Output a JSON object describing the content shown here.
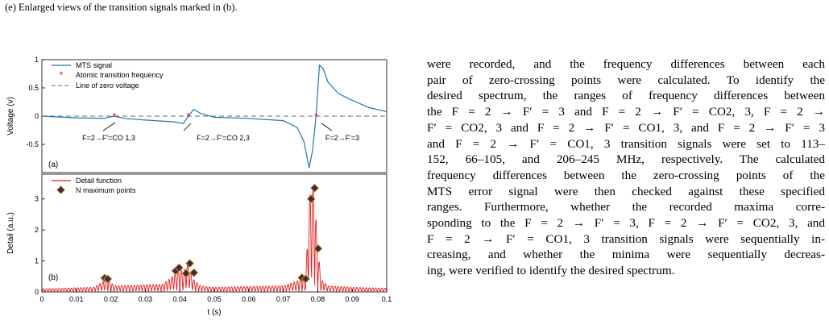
{
  "caption": "(e) Enlarged views of the transition signals marked in (b).",
  "figure": {
    "panel_a": {
      "label": "(a)",
      "ylabel": "Voltage (v)",
      "yticks": [
        "1",
        "0.5",
        "0",
        "-0.5"
      ],
      "legend": [
        "MTS signal",
        "Atomic transition frequency",
        "Line of zero voltage"
      ],
      "annotations": [
        "F=2→F'=CO 1,3",
        "F=2→F'=CO 2,3",
        "F=2→F'=3"
      ],
      "colors": {
        "signal": "#1f77b4",
        "marker": "#e41a1c",
        "zero_line": "#888888"
      }
    },
    "panel_b": {
      "label": "(b)",
      "ylabel": "Detail (a.u.)",
      "yticks": [
        "3",
        "2",
        "1",
        "0"
      ],
      "legend": [
        "Detail function",
        "N maximum points"
      ],
      "colors": {
        "detail": "#e41a1c",
        "points_fill": "#3b2a55",
        "points_edge": "#e6a800"
      }
    },
    "xlabel": "t (s)",
    "xticks": [
      "0",
      "0.01",
      "0.02",
      "0.03",
      "0.04",
      "0.05",
      "0.06",
      "0.07",
      "0.08",
      "0.09",
      "0.1"
    ]
  },
  "chart_data": [
    {
      "type": "line",
      "ylabel": "Voltage (v)",
      "xlabel": "t (s)",
      "xlim": [
        0,
        0.1
      ],
      "ylim": [
        -1,
        1
      ],
      "series": [
        {
          "name": "MTS signal",
          "x": [
            0,
            0.01,
            0.018,
            0.021,
            0.024,
            0.03,
            0.038,
            0.041,
            0.0425,
            0.044,
            0.046,
            0.05,
            0.06,
            0.07,
            0.074,
            0.076,
            0.0775,
            0.0785,
            0.0795,
            0.0805,
            0.0815,
            0.083,
            0.086,
            0.09,
            0.095,
            0.1
          ],
          "y": [
            0.0,
            -0.03,
            -0.04,
            0.0,
            -0.04,
            -0.07,
            -0.1,
            -0.13,
            0.0,
            0.12,
            0.05,
            -0.02,
            -0.04,
            -0.08,
            -0.2,
            -0.45,
            -0.92,
            -0.6,
            0.0,
            0.9,
            0.85,
            0.6,
            0.4,
            0.28,
            0.15,
            0.08
          ]
        },
        {
          "name": "Atomic transition frequency",
          "x": [
            0.021,
            0.0425,
            0.0795
          ],
          "y": [
            0,
            0,
            0
          ]
        },
        {
          "name": "Line of zero voltage",
          "x": [
            0,
            0.1
          ],
          "y": [
            0,
            0
          ]
        }
      ]
    },
    {
      "type": "line",
      "ylabel": "Detail (a.u.)",
      "xlabel": "t (s)",
      "xlim": [
        0,
        0.1
      ],
      "ylim": [
        0,
        3.8
      ],
      "series": [
        {
          "name": "Detail function",
          "envelope_x": [
            0,
            0.015,
            0.018,
            0.0185,
            0.019,
            0.021,
            0.035,
            0.039,
            0.04,
            0.041,
            0.042,
            0.043,
            0.044,
            0.046,
            0.05,
            0.07,
            0.074,
            0.0755,
            0.0765,
            0.0775,
            0.078,
            0.079,
            0.08,
            0.081,
            0.083,
            0.09,
            0.1
          ],
          "envelope_y": [
            0.1,
            0.15,
            0.35,
            0.48,
            0.42,
            0.2,
            0.25,
            0.6,
            0.75,
            0.6,
            0.95,
            0.7,
            0.4,
            0.2,
            0.15,
            0.2,
            0.35,
            0.45,
            0.4,
            3.0,
            3.35,
            3.35,
            1.4,
            0.4,
            0.2,
            0.15,
            0.12
          ]
        },
        {
          "name": "N maximum points",
          "x": [
            0.0182,
            0.0191,
            0.0388,
            0.0398,
            0.0418,
            0.0429,
            0.0441,
            0.0754,
            0.0765,
            0.0781,
            0.0791,
            0.0801
          ],
          "y": [
            0.45,
            0.42,
            0.68,
            0.78,
            0.6,
            0.92,
            0.62,
            0.46,
            0.42,
            3.0,
            3.35,
            1.4
          ]
        }
      ]
    }
  ],
  "paragraph": {
    "lines": [
      "were recorded, and the frequency differences between each",
      "pair of zero-crossing points were calculated. To identify the",
      "desired spectrum, the ranges of frequency differences between",
      "the F = 2 → F′ = 3 and F = 2 → F′ = CO2, 3, F = 2 →",
      "F′ = CO2, 3 and F = 2 → F′ = CO1, 3, and F = 2 → F′ = 3",
      "and F = 2 → F′ = CO1, 3 transition signals were set to 113–",
      "152, 66–105, and 206–245 MHz, respectively. The calculated",
      "frequency differences between the zero-crossing points of the",
      "MTS error signal were then checked against these specified",
      "ranges. Furthermore, whether the recorded maxima corre-",
      "sponding to the F = 2 → F′ = 3, F = 2 → F′ = CO2, 3, and",
      "F = 2 → F′ = CO1, 3 transition signals were sequentially in-",
      "creasing, and whether the minima were sequentially decreas-",
      "ing, were verified to identify the desired spectrum."
    ]
  }
}
